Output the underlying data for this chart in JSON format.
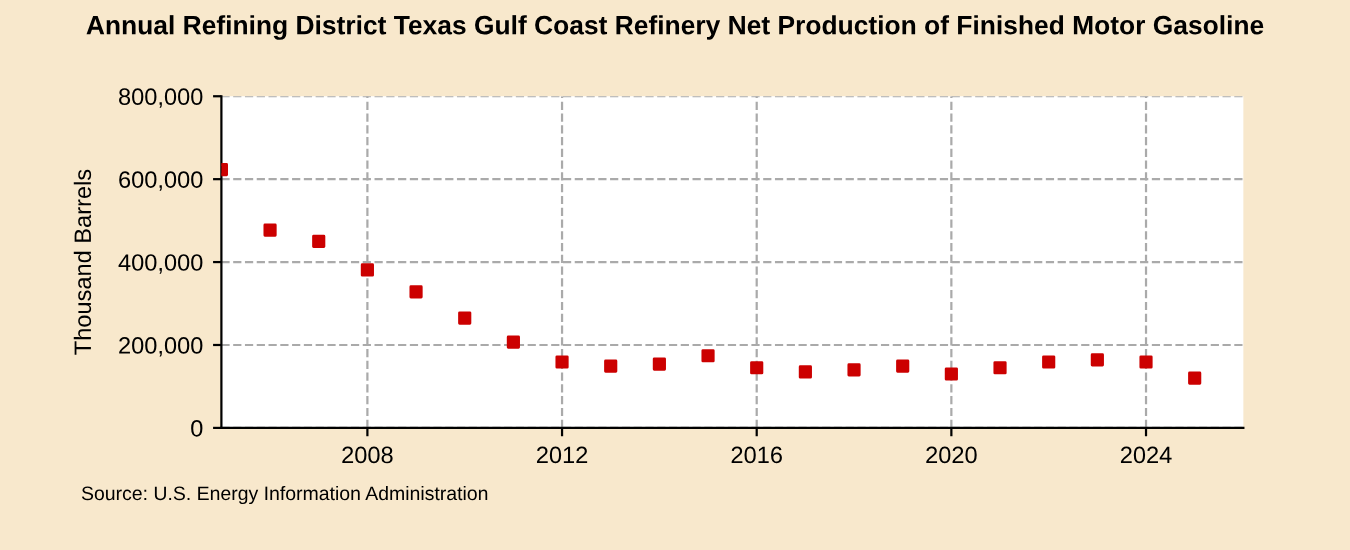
{
  "chart_data": {
    "type": "scatter",
    "title": "Annual Refining District Texas Gulf Coast Refinery Net Production of Finished Motor Gasoline",
    "ylabel": "Thousand Barrels",
    "x": [
      2005,
      2006,
      2007,
      2008,
      2009,
      2010,
      2011,
      2012,
      2013,
      2014,
      2015,
      2016,
      2017,
      2018,
      2019,
      2020,
      2021,
      2022,
      2023,
      2024,
      2025
    ],
    "series": [
      {
        "color": "#cc0000",
        "values": [
          623000,
          477000,
          450000,
          381000,
          328000,
          265000,
          207000,
          159000,
          149000,
          154000,
          174000,
          145000,
          135000,
          140000,
          149000,
          130000,
          145000,
          159000,
          164000,
          159000,
          120000
        ]
      }
    ],
    "xlim": [
      2005,
      2026
    ],
    "xticks": [
      2008,
      2012,
      2016,
      2020,
      2024
    ],
    "ylim": [
      0,
      800000
    ],
    "yticks": [
      {
        "value": 0,
        "label": "0"
      },
      {
        "value": 200000,
        "label": "200,000"
      },
      {
        "value": 400000,
        "label": "400,000"
      },
      {
        "value": 600000,
        "label": "600,000"
      },
      {
        "value": 800000,
        "label": "800,000"
      }
    ],
    "grid": true,
    "marker": "square",
    "annotations": [
      "Source: U.S. Energy Information Administration"
    ]
  }
}
